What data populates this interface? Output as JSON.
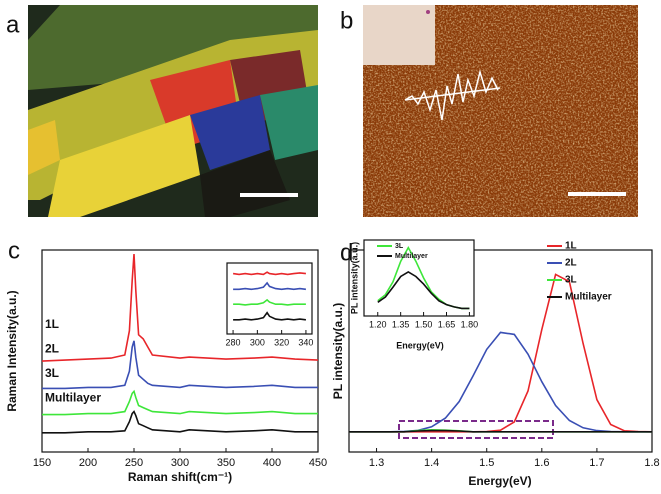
{
  "panels": {
    "a": "a",
    "b": "b",
    "c": "c",
    "d": "d"
  },
  "chart_data": [
    {
      "type": "line",
      "xlabel": "Raman shift(cm⁻¹)",
      "ylabel": "Raman Intensity(a.u.)",
      "x": [
        150,
        175,
        200,
        225,
        240,
        245,
        248,
        250,
        252,
        255,
        260,
        265,
        270,
        300,
        310,
        350,
        380,
        400,
        425,
        450
      ],
      "xlim": [
        150,
        450
      ],
      "xticks": [
        150,
        200,
        250,
        300,
        350,
        400,
        450
      ],
      "ylim": [
        0,
        100
      ],
      "series": [
        {
          "name": "1L",
          "color": "#e8262a",
          "values": [
            45,
            45.5,
            46,
            46.5,
            48,
            60,
            85,
            98,
            80,
            58,
            56,
            52,
            48,
            46.5,
            47,
            46,
            46.5,
            47,
            46,
            45.5
          ]
        },
        {
          "name": "2L",
          "color": "#3a4fb4",
          "values": [
            31.5,
            31.5,
            32,
            32,
            33,
            40,
            52,
            55,
            47,
            38,
            36,
            34,
            33,
            32,
            33,
            32,
            32.5,
            33,
            32,
            32
          ]
        },
        {
          "name": "3L",
          "color": "#3ee63a",
          "values": [
            18.5,
            18.5,
            19,
            19,
            20,
            25,
            29,
            30,
            27,
            23,
            22,
            21,
            20,
            19,
            20,
            19,
            19.5,
            20,
            19,
            19
          ]
        },
        {
          "name": "Multilayer",
          "color": "#111111",
          "values": [
            9.5,
            9.5,
            10,
            10,
            10.5,
            15,
            19,
            20,
            18,
            14,
            13,
            12,
            11,
            10,
            11,
            10,
            10.5,
            11,
            10,
            10
          ]
        }
      ]
    },
    {
      "type": "line",
      "x": [
        280,
        285,
        290,
        295,
        300,
        305,
        308,
        310,
        315,
        320,
        325,
        330,
        335,
        340
      ],
      "xlim": [
        275,
        345
      ],
      "xticks": [
        280,
        300,
        320,
        340
      ],
      "ylim": [
        0,
        100
      ],
      "series": [
        {
          "color": "#e8262a",
          "values": [
            85,
            84,
            85,
            84,
            85,
            84,
            87,
            85,
            84,
            85,
            84,
            85,
            86,
            85
          ]
        },
        {
          "color": "#3a4fb4",
          "values": [
            63,
            63,
            64,
            63,
            64,
            66,
            72,
            67,
            64,
            63,
            64,
            63,
            64,
            63
          ]
        },
        {
          "color": "#3ee63a",
          "values": [
            42,
            42,
            41,
            42,
            42,
            44,
            48,
            45,
            42,
            42,
            41,
            42,
            42,
            42
          ]
        },
        {
          "color": "#111111",
          "values": [
            20,
            20,
            21,
            20,
            21,
            23,
            30,
            25,
            21,
            20,
            21,
            20,
            21,
            20
          ]
        }
      ]
    },
    {
      "type": "line",
      "xlabel": "Energy(eV)",
      "ylabel": "PL intensity(a.u.)",
      "legend": "upper right",
      "x": [
        1.25,
        1.275,
        1.3,
        1.325,
        1.35,
        1.375,
        1.4,
        1.425,
        1.45,
        1.475,
        1.5,
        1.525,
        1.55,
        1.575,
        1.6,
        1.625,
        1.65,
        1.675,
        1.7,
        1.725,
        1.75,
        1.775,
        1.8
      ],
      "xlim": [
        1.25,
        1.8
      ],
      "xticks": [
        1.3,
        1.4,
        1.5,
        1.6,
        1.7,
        1.8
      ],
      "ylim": [
        0,
        100
      ],
      "series": [
        {
          "name": "1L",
          "color": "#e8262a",
          "values": [
            10,
            10,
            10,
            10,
            10,
            10,
            10,
            10,
            10,
            10,
            10.1,
            10.8,
            14.9,
            30.2,
            60.6,
            87.9,
            84.3,
            53.7,
            25.9,
            13.6,
            10.5,
            10.1,
            10
          ]
        },
        {
          "name": "2L",
          "color": "#3a4fb4",
          "values": [
            10,
            10,
            10,
            10,
            10.2,
            10.7,
            12.5,
            16.8,
            25,
            37.6,
            50.8,
            59.2,
            58.2,
            48.4,
            34.8,
            23,
            15.6,
            12,
            10.6,
            10.1,
            10,
            10,
            10
          ]
        },
        {
          "name": "3L",
          "color": "#3ee63a",
          "values": [
            10,
            10,
            10,
            10,
            10,
            10.6,
            11,
            10.8,
            10.5,
            10,
            10,
            10,
            10,
            10,
            10,
            10,
            10,
            10,
            10,
            10,
            10,
            10,
            10
          ]
        },
        {
          "name": "Multilayer",
          "color": "#111111",
          "values": [
            10,
            10,
            10,
            10,
            10,
            10.4,
            10.6,
            10.6,
            10.4,
            10,
            10,
            10,
            10,
            10,
            10,
            10,
            10,
            10,
            10,
            10,
            10,
            10,
            10
          ]
        }
      ]
    },
    {
      "type": "line",
      "xlabel": "Energy(eV)",
      "ylabel": "PL intensity(a.u.)",
      "legend": "upper right",
      "x": [
        1.2,
        1.25,
        1.3,
        1.35,
        1.4,
        1.45,
        1.5,
        1.55,
        1.6,
        1.65,
        1.7,
        1.75,
        1.8
      ],
      "xlim": [
        1.11,
        1.83
      ],
      "xticks": [
        {
          "value": 1.2,
          "label": "1.20"
        },
        {
          "value": 1.35,
          "label": "1.35"
        },
        {
          "value": 1.5,
          "label": "1.50"
        },
        {
          "value": 1.65,
          "label": "1.65"
        },
        {
          "value": 1.8,
          "label": "1.80"
        }
      ],
      "ylim": [
        0,
        100
      ],
      "series": [
        {
          "name": "3L",
          "color": "#3ee63a",
          "values": [
            20,
            28,
            45,
            72,
            90,
            72,
            50,
            32,
            22,
            15,
            12,
            10,
            10
          ]
        },
        {
          "name": "Multilayer",
          "color": "#111111",
          "values": [
            18,
            25,
            38,
            52,
            58,
            52,
            42,
            30,
            20,
            15,
            12,
            10,
            10
          ]
        }
      ]
    }
  ]
}
